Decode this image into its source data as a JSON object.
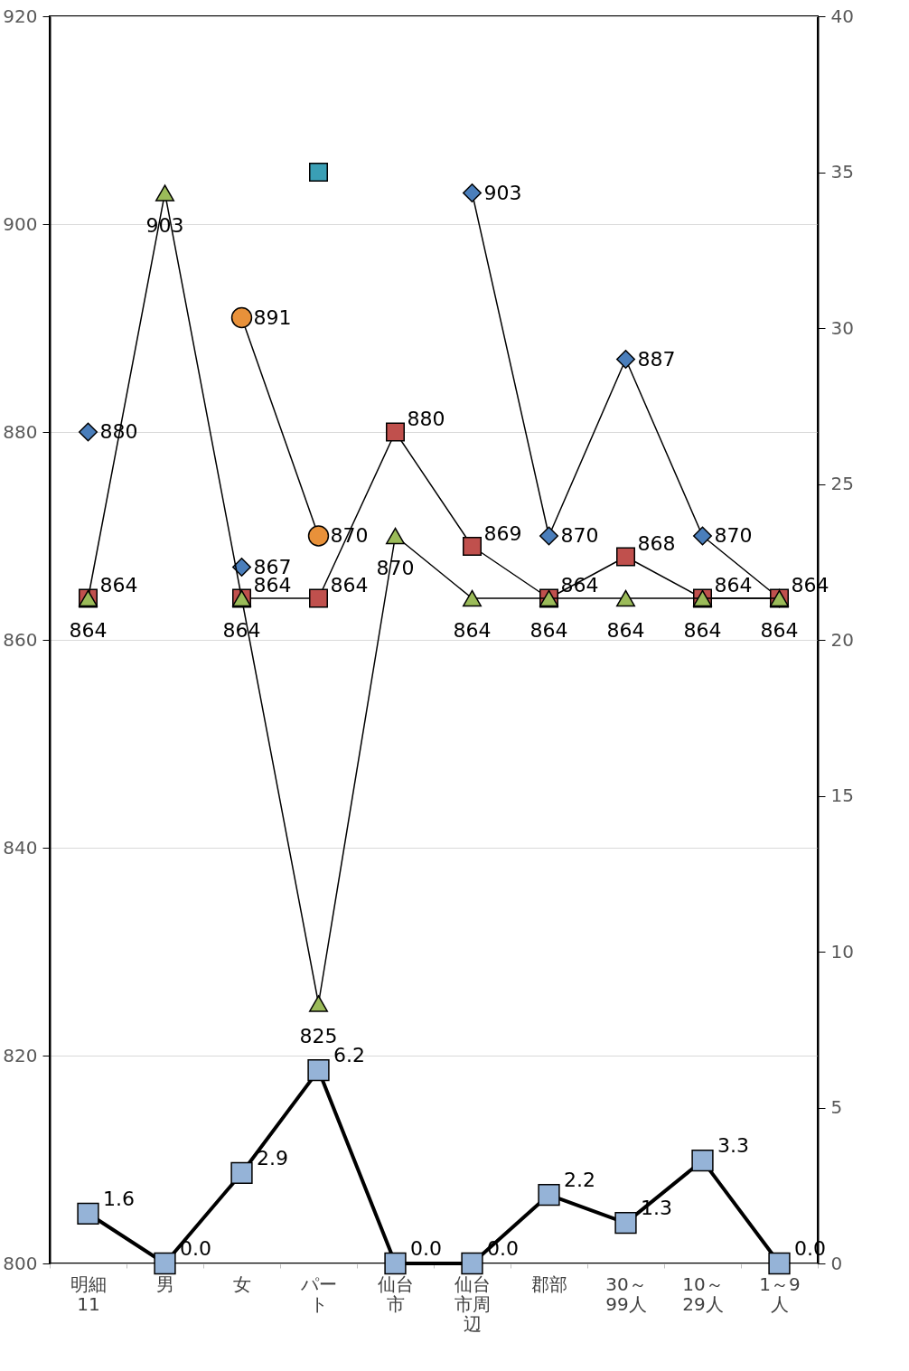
{
  "chart_data": {
    "type": "line",
    "categories": [
      "明細11",
      "男",
      "女",
      "パート",
      "仙台市",
      "仙台市周辺",
      "郡部",
      "30～99人",
      "10～29人",
      "1～9人"
    ],
    "series": [
      {
        "color": "#4a7ebb",
        "marker": "diamond",
        "values": [
          880,
          null,
          867,
          null,
          null,
          903,
          870,
          887,
          870,
          864
        ],
        "value_labels": [
          "880",
          null,
          "867",
          null,
          null,
          "903",
          "870",
          "887",
          "870",
          null
        ]
      },
      {
        "color": "#c0504d",
        "marker": "square",
        "values": [
          864,
          null,
          864,
          864,
          880,
          869,
          864,
          868,
          864,
          864
        ],
        "value_labels": [
          "864",
          null,
          "864",
          "864",
          "880",
          "869",
          "864",
          "868",
          "864",
          "864"
        ]
      },
      {
        "color": "#9bbb59",
        "marker": "triangle",
        "values": [
          864,
          903,
          864,
          825,
          870,
          864,
          864,
          864,
          864,
          864
        ],
        "value_labels": [
          "864",
          "903",
          "864",
          "825",
          "870",
          "864",
          "864",
          "864",
          "864",
          "864"
        ]
      },
      {
        "color": "#e8913a",
        "marker": "circle",
        "values": [
          null,
          null,
          891,
          870,
          null,
          null,
          null,
          null,
          null,
          null
        ],
        "value_labels": [
          null,
          null,
          "891",
          "870",
          null,
          null,
          null,
          null,
          null,
          null
        ]
      },
      {
        "color": "#3a9fb5",
        "marker": "square",
        "values": [
          null,
          null,
          null,
          905,
          null,
          null,
          null,
          null,
          null,
          null
        ]
      },
      {
        "color": "#95b3d7",
        "marker": "square",
        "axis": "y2",
        "values": [
          1.6,
          0.0,
          2.9,
          6.2,
          0.0,
          0.0,
          2.2,
          1.3,
          3.3,
          0.0
        ],
        "value_labels": [
          "1.6",
          "0.0",
          "2.9",
          "6.2",
          "0.0",
          "0.0",
          "2.2",
          "1.3",
          "3.3",
          "0.0"
        ]
      }
    ],
    "ylim": [
      800,
      920
    ],
    "yticks": [
      800,
      820,
      840,
      860,
      880,
      900,
      920
    ],
    "y2lim": [
      0,
      40
    ],
    "y2ticks": [
      0,
      5,
      10,
      15,
      20,
      25,
      30,
      35,
      40
    ],
    "grid": "y",
    "line_style": "solid"
  }
}
